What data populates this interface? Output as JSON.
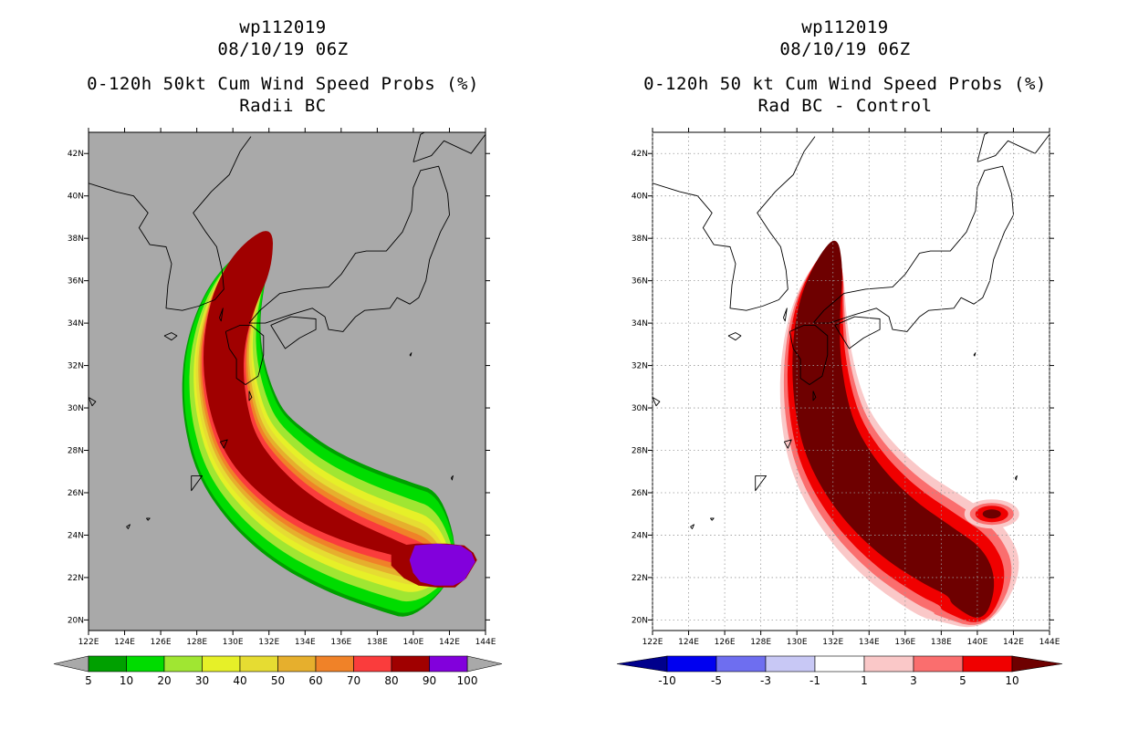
{
  "panels": [
    {
      "id": "left",
      "title_line1": "wp112019",
      "title_line2": "08/10/19 06Z",
      "title_line3": "0-120h 50kt Cum Wind Speed Probs (%)",
      "title_line4": "Radii BC"
    },
    {
      "id": "right",
      "title_line1": "wp112019",
      "title_line2": "08/10/19 06Z",
      "title_line3": "0-120h 50 kt Cum Wind Speed Probs (%)",
      "title_line4": "Rad BC - Control"
    }
  ],
  "chart_data": [
    {
      "type": "heatmap",
      "title": "0-120h 50kt Cum Wind Speed Probs (%)",
      "subtitle": "Radii BC",
      "storm": "wp112019",
      "valid": "08/10/19 06Z",
      "x_ticks": [
        "122E",
        "124E",
        "126E",
        "128E",
        "130E",
        "132E",
        "134E",
        "136E",
        "138E",
        "140E",
        "142E",
        "144E"
      ],
      "y_ticks": [
        "20N",
        "22N",
        "24N",
        "26N",
        "28N",
        "30N",
        "32N",
        "34N",
        "36N",
        "38N",
        "40N",
        "42N"
      ],
      "xlim": [
        122,
        144
      ],
      "ylim": [
        19.5,
        43
      ],
      "background": "#a9a9a9",
      "colorbar": {
        "labels": [
          "5",
          "10",
          "20",
          "30",
          "40",
          "50",
          "60",
          "70",
          "80",
          "90",
          "100"
        ],
        "colors": [
          "#00a000",
          "#00dc00",
          "#a0e632",
          "#e6f028",
          "#e6dc32",
          "#e6af2d",
          "#f08228",
          "#fa3c3c",
          "#a00000",
          "#8200dc"
        ]
      },
      "track_centerline": [
        [
          131.3,
          37.2
        ],
        [
          130.2,
          35.5
        ],
        [
          129.6,
          33.8
        ],
        [
          129.4,
          32.0
        ],
        [
          129.7,
          30.0
        ],
        [
          130.4,
          28.2
        ],
        [
          131.8,
          26.7
        ],
        [
          133.8,
          25.3
        ],
        [
          136.3,
          24.2
        ],
        [
          138.9,
          23.4
        ],
        [
          140.8,
          22.9
        ]
      ],
      "halfwidths": [
        [
          1.0,
          3.2,
          0.7,
          5.5
        ],
        [
          1.0,
          3.0,
          1.0,
          5.5
        ],
        [
          1.0,
          2.4,
          1.3,
          5.2
        ],
        [
          1.0,
          1.9,
          1.6,
          4.6
        ],
        [
          1.1,
          1.5,
          1.95,
          3.95
        ],
        [
          1.1,
          1.2,
          2.2,
          3.2
        ],
        [
          1.15,
          0.9,
          2.5,
          2.4
        ],
        [
          1.2,
          0.6,
          2.7,
          1.9
        ],
        [
          1.3,
          0.2,
          2.9,
          1.6
        ]
      ],
      "core": {
        "high_pct": 90,
        "center": [
          140.8,
          23.0
        ]
      }
    },
    {
      "type": "heatmap",
      "title": "0-120h 50 kt Cum Wind Speed Probs (%)",
      "subtitle": "Rad BC - Control",
      "storm": "wp112019",
      "valid": "08/10/19 06Z",
      "x_ticks": [
        "122E",
        "124E",
        "126E",
        "128E",
        "130E",
        "132E",
        "134E",
        "136E",
        "138E",
        "140E",
        "142E",
        "144E"
      ],
      "y_ticks": [
        "20N",
        "22N",
        "24N",
        "26N",
        "28N",
        "30N",
        "32N",
        "34N",
        "36N",
        "38N",
        "40N",
        "42N"
      ],
      "xlim": [
        122,
        144
      ],
      "ylim": [
        19.5,
        43
      ],
      "background": "#ffffff",
      "grid": true,
      "colorbar": {
        "labels": [
          "-10",
          "-5",
          "-3",
          "-1",
          "1",
          "3",
          "5",
          "10"
        ],
        "colors": [
          "#00008c",
          "#0000f0",
          "#6e6ef0",
          "#c8c8f5",
          "#ffffff",
          "#fac8c8",
          "#fa6e6e",
          "#f00000",
          "#6e0000"
        ]
      },
      "track_centerline": [
        [
          131.8,
          36.8
        ],
        [
          131.2,
          34.8
        ],
        [
          131.0,
          32.5
        ],
        [
          131.3,
          30.0
        ],
        [
          132.0,
          28.0
        ],
        [
          133.5,
          26.0
        ],
        [
          135.5,
          24.3
        ],
        [
          137.8,
          23.0
        ],
        [
          139.4,
          22.2
        ],
        [
          139.8,
          21.2
        ]
      ],
      "halfwidths": [
        [
          1.0,
          3.1,
          1.2,
          5.6
        ],
        [
          1.0,
          2.6,
          1.7,
          5.4
        ],
        [
          1.0,
          2.1,
          2.1,
          5.0
        ],
        [
          1.0,
          1.4,
          2.5,
          4.3
        ]
      ],
      "blob": {
        "center": [
          140.7,
          25.0
        ]
      }
    }
  ]
}
